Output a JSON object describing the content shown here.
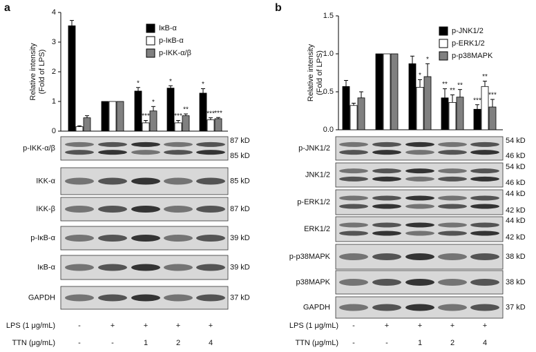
{
  "chart_data": [
    {
      "type": "bar",
      "panel": "a",
      "ylabel": [
        "Relative intensity",
        "(Fold of LPS)"
      ],
      "categories": [
        null,
        null,
        null,
        null,
        null
      ],
      "ylim": [
        0,
        4
      ],
      "yticks": [
        0,
        1,
        2,
        3,
        4
      ],
      "legend": "upper-right",
      "series": [
        {
          "name": "IκB-α",
          "color": "#000000",
          "values": [
            3.55,
            1.0,
            1.35,
            1.45,
            1.28
          ],
          "errors": [
            0.18,
            0,
            0.12,
            0.08,
            0.15
          ],
          "annotations": [
            null,
            null,
            "*",
            "*",
            "*"
          ]
        },
        {
          "name": "p-IκB-α",
          "color": "#ffffff",
          "values": [
            0.15,
            1.0,
            0.28,
            0.28,
            0.38
          ],
          "errors": [
            0.03,
            0,
            0.08,
            0.08,
            0.07
          ],
          "annotations": [
            null,
            null,
            "***",
            "***",
            "***"
          ]
        },
        {
          "name": "p-IKK-α/β",
          "color": "#808080",
          "values": [
            0.45,
            1.0,
            0.68,
            0.52,
            0.42
          ],
          "errors": [
            0.07,
            0,
            0.15,
            0.06,
            0.04
          ],
          "annotations": [
            null,
            null,
            "*",
            "**",
            "***"
          ]
        }
      ]
    },
    {
      "type": "bar",
      "panel": "b",
      "ylabel": [
        "Relative intensity",
        "(Fold of LPS)"
      ],
      "categories": [
        null,
        null,
        null,
        null,
        null
      ],
      "ylim": [
        0,
        1.5
      ],
      "yticks": [
        {
          "value": 0,
          "label": "0.0"
        },
        0.5,
        {
          "value": 1,
          "label": "1.0"
        },
        1.5
      ],
      "legend": "upper-right",
      "series": [
        {
          "name": "p-JNK1/2",
          "color": "#000000",
          "values": [
            0.57,
            1.0,
            0.87,
            0.42,
            0.27
          ],
          "errors": [
            0.08,
            0,
            0.1,
            0.12,
            0.06
          ],
          "annotations": [
            null,
            null,
            null,
            "**",
            "***"
          ]
        },
        {
          "name": "p-ERK1/2",
          "color": "#ffffff",
          "values": [
            0.32,
            1.0,
            0.56,
            0.36,
            0.57
          ],
          "errors": [
            0.03,
            0,
            0.1,
            0.1,
            0.07
          ],
          "annotations": [
            null,
            null,
            "*",
            "**",
            "**"
          ]
        },
        {
          "name": "p-p38MAPK",
          "color": "#808080",
          "values": [
            0.42,
            1.0,
            0.7,
            0.43,
            0.3
          ],
          "errors": [
            0.08,
            0,
            0.17,
            0.1,
            0.1
          ],
          "annotations": [
            null,
            null,
            "*",
            "**",
            "***"
          ]
        }
      ]
    }
  ],
  "blots": [
    [
      {
        "label": "p-IKK-α/β",
        "kd": [
          "87 kD",
          "85 kD"
        ]
      },
      {
        "label": "IKK-α",
        "kd": [
          "85 kD"
        ]
      },
      {
        "label": "IKK-β",
        "kd": [
          "87 kD"
        ]
      },
      {
        "label": "p-IκB-α",
        "kd": [
          "39 kD"
        ]
      },
      {
        "label": "IκB-α",
        "kd": [
          "39 kD"
        ]
      },
      {
        "label": "GAPDH",
        "kd": [
          "37 kD"
        ]
      }
    ],
    [
      {
        "label": "p-JNK1/2",
        "kd": [
          "54 kD",
          "46 kD"
        ]
      },
      {
        "label": "JNK1/2",
        "kd": [
          "54 kD",
          "46 kD"
        ]
      },
      {
        "label": "p-ERK1/2",
        "kd": [
          "44 kD",
          "42 kD"
        ]
      },
      {
        "label": "ERK1/2",
        "kd": [
          "44 kD",
          "42 kD"
        ]
      },
      {
        "label": "p-p38MAPK",
        "kd": [
          "38 kD"
        ]
      },
      {
        "label": "p38MAPK",
        "kd": [
          "38 kD"
        ]
      },
      {
        "label": "GAPDH",
        "kd": [
          "37 kD"
        ]
      }
    ]
  ],
  "treatments": [
    {
      "label": "LPS (1 μg/mL)",
      "levels": [
        "-",
        "+",
        "+",
        "+",
        "+"
      ]
    },
    {
      "label": "TTN (μg/mL)",
      "levels": [
        "-",
        "-",
        "1",
        "2",
        "4"
      ]
    }
  ]
}
